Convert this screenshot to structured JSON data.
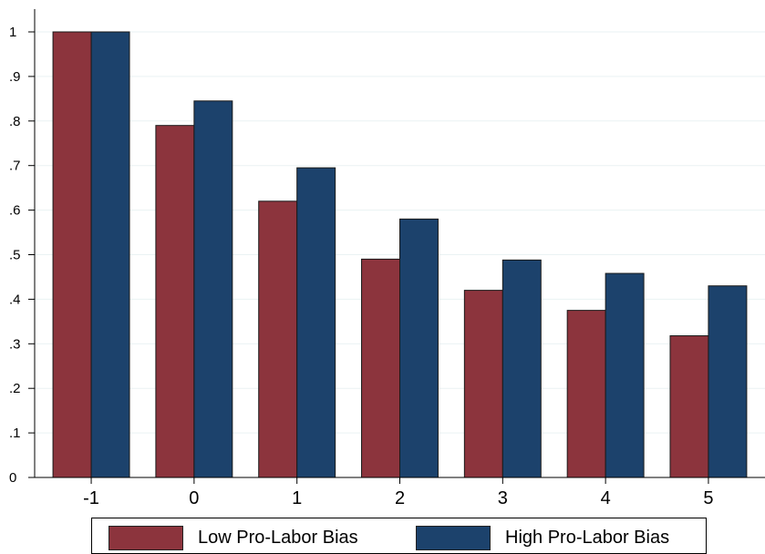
{
  "chart_data": {
    "type": "bar",
    "title": "",
    "xlabel": "",
    "ylabel": "",
    "categories": [
      "-1",
      "0",
      "1",
      "2",
      "3",
      "4",
      "5"
    ],
    "series": [
      {
        "name": "Low Pro-Labor Bias",
        "color": "#8c343d",
        "values": [
          1.0,
          0.79,
          0.62,
          0.49,
          0.42,
          0.375,
          0.318
        ]
      },
      {
        "name": "High Pro-Labor Bias",
        "color": "#1c426c",
        "values": [
          1.0,
          0.845,
          0.695,
          0.58,
          0.488,
          0.458,
          0.43
        ]
      }
    ],
    "ylim": [
      0,
      1
    ],
    "yticks": [
      0,
      0.1,
      0.2,
      0.3,
      0.4,
      0.5,
      0.6,
      0.7,
      0.8,
      0.9,
      1
    ],
    "ytick_labels": [
      "0",
      ".1",
      ".2",
      ".3",
      ".4",
      ".5",
      ".6",
      ".7",
      ".8",
      ".9",
      "1"
    ],
    "grid": true,
    "legend_position": "bottom"
  },
  "legend": {
    "items": [
      {
        "label": "Low Pro-Labor Bias",
        "color": "#8c343d"
      },
      {
        "label": "High Pro-Labor Bias",
        "color": "#1c426c"
      }
    ]
  }
}
